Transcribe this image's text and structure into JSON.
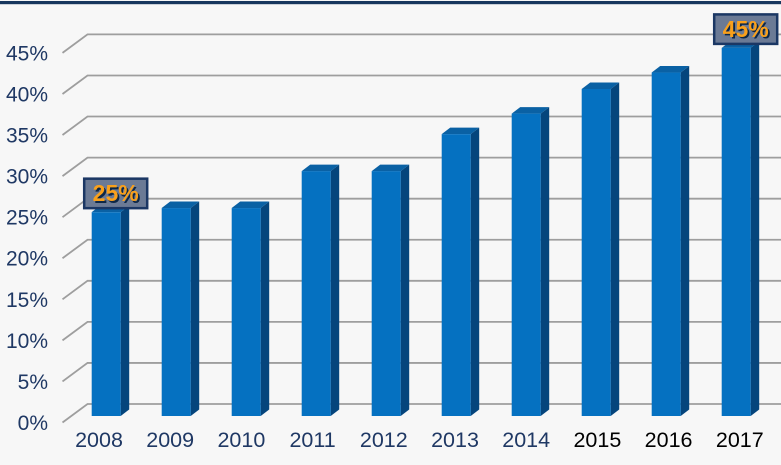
{
  "chart_data": {
    "type": "bar",
    "style": "3d-column",
    "title": "",
    "xlabel": "",
    "ylabel": "",
    "categories": [
      "2008",
      "2009",
      "2010",
      "2011",
      "2012",
      "2013",
      "2014",
      "2015",
      "2016",
      "2017"
    ],
    "values": [
      25,
      25.5,
      25.5,
      30,
      30,
      34.5,
      37,
      40,
      42,
      45
    ],
    "unit": "%",
    "ylim": [
      0,
      45
    ],
    "ytick_step": 5,
    "ytick_labels": [
      "0%",
      "5%",
      "10%",
      "15%",
      "20%",
      "25%",
      "30%",
      "35%",
      "40%",
      "45%"
    ],
    "grid": "horizontal",
    "legend": "none",
    "point_labels": [
      {
        "index": 0,
        "text": "25%"
      },
      {
        "index": 9,
        "text": "45%"
      }
    ],
    "category_label_colors": [
      "#1f3864",
      "#1f3864",
      "#1f3864",
      "#1f3864",
      "#1f3864",
      "#1f3864",
      "#1f3864",
      "#000000",
      "#000000",
      "#000000"
    ],
    "colors": {
      "background": "#f7f7f7",
      "top_border": "#17375e",
      "gridline": "#9e9e9e",
      "tick_label": "#1f3864",
      "bar_front": "#0571c1",
      "bar_top": "#0a61a4",
      "bar_side": "#05457c",
      "label_box_bg": "#6b7a95",
      "label_box_border": "#1b3764",
      "label_text": "#f9a01b",
      "label_text_shadow": "#0d2747"
    }
  }
}
